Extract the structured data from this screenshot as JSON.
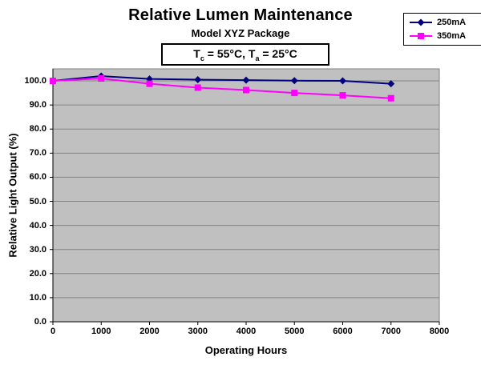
{
  "chart_data": {
    "type": "line",
    "title": "Relative Lumen Maintenance",
    "subtitle": "Model XYZ Package",
    "annotation": {
      "plain": "Tc = 55°C, Ta = 25°C",
      "segments": [
        {
          "text": "T"
        },
        {
          "sub": "c"
        },
        {
          "text": " = 55°C, T"
        },
        {
          "sub": "a"
        },
        {
          "text": " = 25°C"
        }
      ]
    },
    "xlabel": "Operating Hours",
    "ylabel": "Relative Light Output (%)",
    "x": [
      0,
      1000,
      2000,
      3000,
      4000,
      5000,
      6000,
      7000
    ],
    "series": [
      {
        "name": "250mA",
        "color": "#000080",
        "marker": "diamond",
        "values": [
          100.0,
          102.0,
          100.8,
          100.5,
          100.3,
          100.1,
          100.0,
          98.8
        ]
      },
      {
        "name": "350mA",
        "color": "#FF00FF",
        "marker": "square",
        "values": [
          100.0,
          101.0,
          98.8,
          97.2,
          96.2,
          95.0,
          94.0,
          92.8
        ]
      }
    ],
    "xlim": [
      0,
      8000
    ],
    "ylim": [
      0,
      105
    ],
    "x_ticks": [
      {
        "v": 0,
        "label": "0"
      },
      {
        "v": 1000,
        "label": "1000"
      },
      {
        "v": 2000,
        "label": "2000"
      },
      {
        "v": 3000,
        "label": "3000"
      },
      {
        "v": 4000,
        "label": "4000"
      },
      {
        "v": 5000,
        "label": "5000"
      },
      {
        "v": 6000,
        "label": "6000"
      },
      {
        "v": 7000,
        "label": "7000"
      },
      {
        "v": 8000,
        "label": "8000"
      }
    ],
    "y_ticks": [
      {
        "v": 0,
        "label": "0.0"
      },
      {
        "v": 10,
        "label": "10.0"
      },
      {
        "v": 20,
        "label": "20.0"
      },
      {
        "v": 30,
        "label": "30.0"
      },
      {
        "v": 40,
        "label": "40.0"
      },
      {
        "v": 50,
        "label": "50.0"
      },
      {
        "v": 60,
        "label": "60.0"
      },
      {
        "v": 70,
        "label": "70.0"
      },
      {
        "v": 80,
        "label": "80.0"
      },
      {
        "v": 90,
        "label": "90.0"
      },
      {
        "v": 100,
        "label": "100.0"
      }
    ],
    "grid": "horizontal-major",
    "legend_position": "top-right",
    "colors": {
      "plot_bg": "#C0C0C0",
      "gridline": "#848484",
      "plot_border": "#808080",
      "axis": "#000000",
      "series_250mA": "#000080",
      "series_350mA": "#FF00FF"
    }
  }
}
